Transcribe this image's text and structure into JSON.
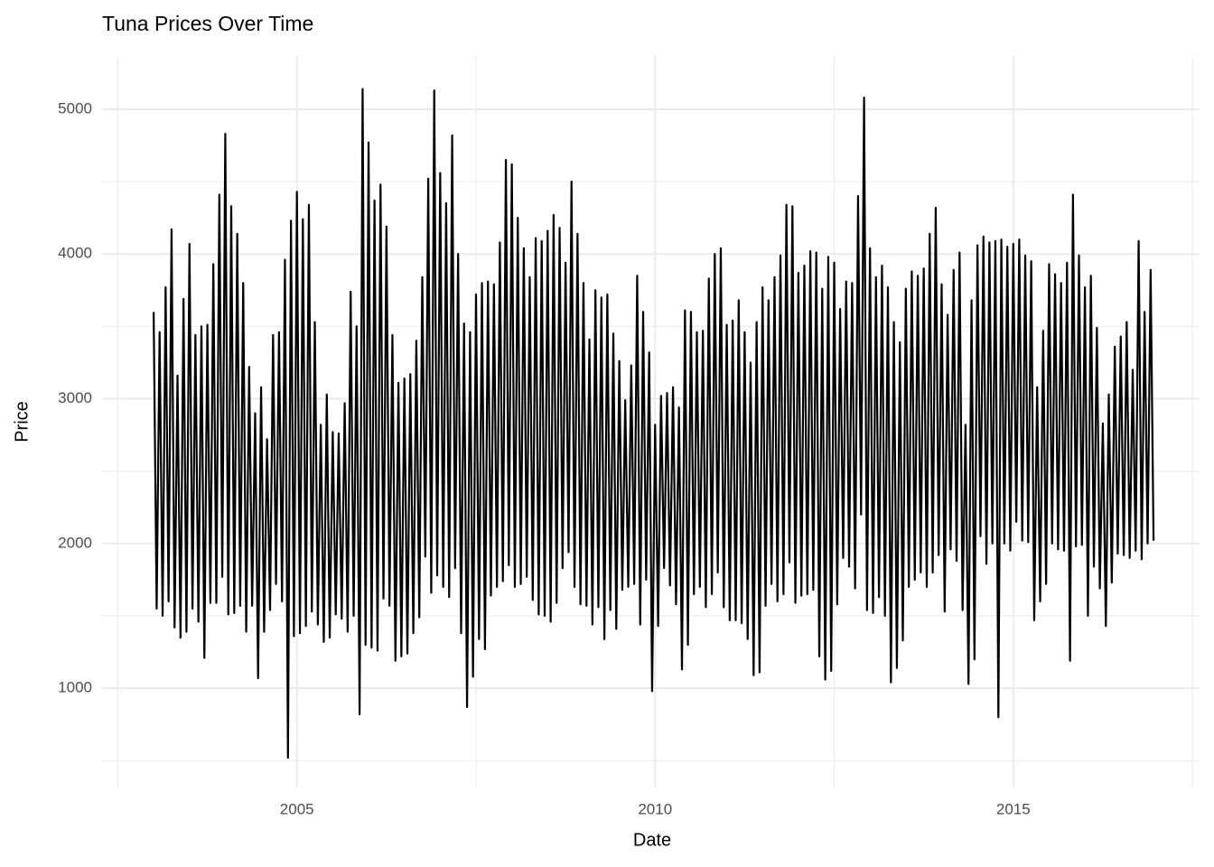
{
  "chart_data": {
    "type": "line",
    "title": "Tuna Prices Over Time",
    "x_label": "Date",
    "y_label": "Price",
    "xlim": [
      2002.28,
      2017.6
    ],
    "xticks": [
      2005,
      2010,
      2015
    ],
    "ylim": [
      314,
      5368
    ],
    "yticks": [
      1000,
      2000,
      3000,
      4000,
      5000
    ],
    "grid": true,
    "x": [
      2003,
      2003.042,
      2003.083,
      2003.125,
      2003.167,
      2003.208,
      2003.25,
      2003.292,
      2003.333,
      2003.375,
      2003.417,
      2003.458,
      2003.5,
      2003.542,
      2003.583,
      2003.625,
      2003.667,
      2003.708,
      2003.75,
      2003.792,
      2003.833,
      2003.875,
      2003.917,
      2003.958,
      2004,
      2004.042,
      2004.083,
      2004.125,
      2004.167,
      2004.208,
      2004.25,
      2004.292,
      2004.333,
      2004.375,
      2004.417,
      2004.458,
      2004.5,
      2004.542,
      2004.583,
      2004.625,
      2004.667,
      2004.708,
      2004.75,
      2004.792,
      2004.833,
      2004.875,
      2004.917,
      2004.958,
      2005,
      2005.042,
      2005.083,
      2005.125,
      2005.167,
      2005.208,
      2005.25,
      2005.292,
      2005.333,
      2005.375,
      2005.417,
      2005.458,
      2005.5,
      2005.542,
      2005.583,
      2005.625,
      2005.667,
      2005.708,
      2005.75,
      2005.792,
      2005.833,
      2005.875,
      2005.917,
      2005.958,
      2006,
      2006.042,
      2006.083,
      2006.125,
      2006.167,
      2006.208,
      2006.25,
      2006.292,
      2006.333,
      2006.375,
      2006.417,
      2006.458,
      2006.5,
      2006.542,
      2006.583,
      2006.625,
      2006.667,
      2006.708,
      2006.75,
      2006.792,
      2006.833,
      2006.875,
      2006.917,
      2006.958,
      2007,
      2007.042,
      2007.083,
      2007.125,
      2007.167,
      2007.208,
      2007.25,
      2007.292,
      2007.333,
      2007.375,
      2007.417,
      2007.458,
      2007.5,
      2007.542,
      2007.583,
      2007.625,
      2007.667,
      2007.708,
      2007.75,
      2007.792,
      2007.833,
      2007.875,
      2007.917,
      2007.958,
      2008,
      2008.042,
      2008.083,
      2008.125,
      2008.167,
      2008.208,
      2008.25,
      2008.292,
      2008.333,
      2008.375,
      2008.417,
      2008.458,
      2008.5,
      2008.542,
      2008.583,
      2008.625,
      2008.667,
      2008.708,
      2008.75,
      2008.792,
      2008.833,
      2008.875,
      2008.917,
      2008.958,
      2009,
      2009.042,
      2009.083,
      2009.125,
      2009.167,
      2009.208,
      2009.25,
      2009.292,
      2009.333,
      2009.375,
      2009.417,
      2009.458,
      2009.5,
      2009.542,
      2009.583,
      2009.625,
      2009.667,
      2009.708,
      2009.75,
      2009.792,
      2009.833,
      2009.875,
      2009.917,
      2009.958,
      2010,
      2010.042,
      2010.083,
      2010.125,
      2010.167,
      2010.208,
      2010.25,
      2010.292,
      2010.333,
      2010.375,
      2010.417,
      2010.458,
      2010.5,
      2010.542,
      2010.583,
      2010.625,
      2010.667,
      2010.708,
      2010.75,
      2010.792,
      2010.833,
      2010.875,
      2010.917,
      2010.958,
      2011,
      2011.042,
      2011.083,
      2011.125,
      2011.167,
      2011.208,
      2011.25,
      2011.292,
      2011.333,
      2011.375,
      2011.417,
      2011.458,
      2011.5,
      2011.542,
      2011.583,
      2011.625,
      2011.667,
      2011.708,
      2011.75,
      2011.792,
      2011.833,
      2011.875,
      2011.917,
      2011.958,
      2012,
      2012.042,
      2012.083,
      2012.125,
      2012.167,
      2012.208,
      2012.25,
      2012.292,
      2012.333,
      2012.375,
      2012.417,
      2012.458,
      2012.5,
      2012.542,
      2012.583,
      2012.625,
      2012.667,
      2012.708,
      2012.75,
      2012.792,
      2012.833,
      2012.875,
      2012.917,
      2012.958,
      2013,
      2013.042,
      2013.083,
      2013.125,
      2013.167,
      2013.208,
      2013.25,
      2013.292,
      2013.333,
      2013.375,
      2013.417,
      2013.458,
      2013.5,
      2013.542,
      2013.583,
      2013.625,
      2013.667,
      2013.708,
      2013.75,
      2013.792,
      2013.833,
      2013.875,
      2013.917,
      2013.958,
      2014,
      2014.042,
      2014.083,
      2014.125,
      2014.167,
      2014.208,
      2014.25,
      2014.292,
      2014.333,
      2014.375,
      2014.417,
      2014.458,
      2014.5,
      2014.542,
      2014.583,
      2014.625,
      2014.667,
      2014.708,
      2014.75,
      2014.792,
      2014.833,
      2014.875,
      2014.917,
      2014.958,
      2015,
      2015.042,
      2015.083,
      2015.125,
      2015.167,
      2015.208,
      2015.25,
      2015.292,
      2015.333,
      2015.375,
      2015.417,
      2015.458,
      2015.5,
      2015.542,
      2015.583,
      2015.625,
      2015.667,
      2015.708,
      2015.75,
      2015.792,
      2015.833,
      2015.875,
      2015.917,
      2015.958,
      2016,
      2016.042,
      2016.083,
      2016.125,
      2016.167,
      2016.208,
      2016.25,
      2016.292,
      2016.333,
      2016.375,
      2016.417,
      2016.458,
      2016.5,
      2016.542,
      2016.583,
      2016.625,
      2016.667,
      2016.708,
      2016.75,
      2016.792,
      2016.833,
      2016.875,
      2016.917,
      2016.958
    ],
    "series": [
      {
        "color": "#000000",
        "values": [
          3600,
          1550,
          3460,
          1500,
          3770,
          1600,
          4170,
          1420,
          3160,
          1350,
          3690,
          1390,
          4070,
          1550,
          3440,
          1460,
          3500,
          1210,
          3510,
          1590,
          3930,
          1590,
          4410,
          1770,
          4830,
          1510,
          4330,
          1520,
          4140,
          1570,
          3800,
          1390,
          3220,
          1570,
          2900,
          1070,
          3080,
          1390,
          2720,
          1540,
          3440,
          1720,
          3460,
          1600,
          3960,
          520,
          4230,
          1360,
          4430,
          1380,
          4240,
          1430,
          4340,
          1530,
          3530,
          1440,
          2820,
          1320,
          3030,
          1350,
          2770,
          1510,
          2760,
          1480,
          2970,
          1390,
          3740,
          1500,
          3500,
          820,
          5140,
          1300,
          4770,
          1280,
          4370,
          1260,
          4480,
          1620,
          4190,
          1570,
          3440,
          1190,
          3110,
          1220,
          3140,
          1240,
          3170,
          1380,
          3400,
          1490,
          3840,
          1910,
          4520,
          1660,
          5130,
          1780,
          4560,
          1700,
          4350,
          1630,
          4820,
          1830,
          4000,
          1380,
          3520,
          870,
          3460,
          1080,
          3720,
          1340,
          3800,
          1270,
          3810,
          1640,
          3790,
          1700,
          4080,
          1740,
          4650,
          1850,
          4620,
          1700,
          4250,
          1720,
          4040,
          1770,
          3840,
          1610,
          4110,
          1510,
          4090,
          1500,
          4160,
          1460,
          4270,
          1590,
          4180,
          1830,
          3940,
          1940,
          4500,
          1700,
          4140,
          1580,
          3800,
          1570,
          3410,
          1440,
          3750,
          1560,
          3700,
          1340,
          3720,
          1540,
          3450,
          1410,
          3260,
          1680,
          2990,
          1700,
          3230,
          1720,
          3850,
          1440,
          3600,
          1750,
          3320,
          980,
          2820,
          1430,
          3020,
          1830,
          3040,
          1710,
          3080,
          1580,
          2940,
          1130,
          3610,
          1300,
          3600,
          1650,
          3460,
          1700,
          3470,
          1560,
          3830,
          1650,
          4000,
          1800,
          4040,
          1560,
          3510,
          1470,
          3540,
          1470,
          3680,
          1450,
          3460,
          1340,
          3250,
          1090,
          3530,
          1110,
          3770,
          1570,
          3680,
          1720,
          3840,
          1600,
          3990,
          1650,
          4340,
          1870,
          4330,
          1590,
          3870,
          1640,
          3920,
          1650,
          4020,
          1680,
          4010,
          1220,
          3760,
          1060,
          3980,
          1120,
          3940,
          1580,
          3620,
          1900,
          3810,
          1840,
          3800,
          1690,
          4400,
          2200,
          5080,
          1540,
          4040,
          1520,
          3840,
          1630,
          3920,
          1500,
          3770,
          1040,
          3530,
          1140,
          3390,
          1330,
          3760,
          1700,
          3880,
          1750,
          3850,
          1800,
          3900,
          1700,
          4140,
          1800,
          4320,
          1920,
          3790,
          1530,
          3580,
          1960,
          3890,
          1880,
          4010,
          1540,
          2820,
          1030,
          3680,
          1200,
          4060,
          2050,
          4120,
          1860,
          4080,
          2000,
          4090,
          800,
          4100,
          2000,
          4050,
          1950,
          4070,
          2150,
          4100,
          2020,
          3990,
          2010,
          3950,
          1470,
          3080,
          1600,
          3470,
          1720,
          3930,
          2000,
          3860,
          1960,
          3800,
          1950,
          3940,
          1190,
          4410,
          1980,
          3990,
          1990,
          3770,
          1500,
          3850,
          1840,
          3490,
          1690,
          2830,
          1430,
          3030,
          1730,
          3360,
          1930,
          3430,
          1920,
          3530,
          1900,
          3200,
          1950,
          4090,
          1890,
          3600,
          2000,
          3890,
          2020
        ]
      }
    ]
  }
}
